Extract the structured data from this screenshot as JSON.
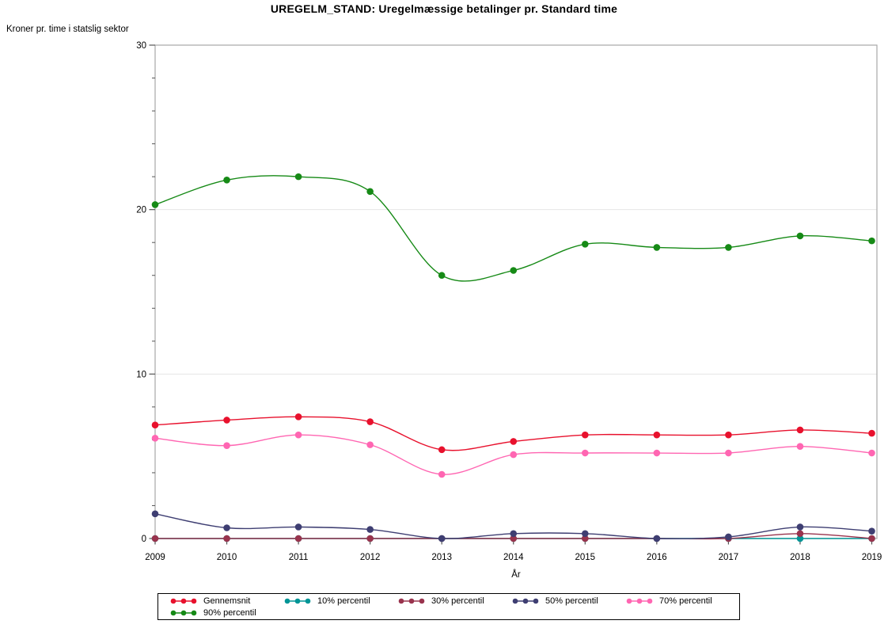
{
  "page": {
    "title": "UREGELM_STAND: Uregelmæssige betalinger pr. Standard time"
  },
  "chart_data": {
    "type": "line",
    "title": "UREGELM_STAND: Uregelmæssige betalinger pr. Standard time",
    "ylabel": "Kroner pr. time i statslig sektor",
    "xlabel": "År",
    "x": [
      2009,
      2010,
      2011,
      2012,
      2013,
      2014,
      2015,
      2016,
      2017,
      2018,
      2019
    ],
    "ylim": [
      0,
      30
    ],
    "yticks": [
      0,
      10,
      20,
      30
    ],
    "y_minor_tick_step": 2,
    "grid": true,
    "legend_position": "bottom",
    "marker": "filled-circle",
    "line_style": "smooth-spline",
    "frame_color": "#a8a8a8",
    "gridline_color": "#e6e6e6",
    "tick_color": "#555555",
    "series": [
      {
        "name": "Gennemsnit",
        "color": "#e8112d",
        "values": [
          6.9,
          7.2,
          7.4,
          7.1,
          5.4,
          5.9,
          6.3,
          6.3,
          6.3,
          6.6,
          6.4
        ]
      },
      {
        "name": "10% percentil",
        "color": "#009596",
        "values": [
          0.0,
          0.0,
          0.0,
          0.0,
          0.0,
          0.0,
          0.0,
          0.0,
          0.0,
          0.0,
          0.0
        ]
      },
      {
        "name": "30% percentil",
        "color": "#99334d",
        "values": [
          0.0,
          0.0,
          0.0,
          0.0,
          0.0,
          0.0,
          0.0,
          0.0,
          0.0,
          0.3,
          0.0
        ]
      },
      {
        "name": "50% percentil",
        "color": "#3e3e72",
        "values": [
          1.5,
          0.65,
          0.7,
          0.55,
          0.0,
          0.3,
          0.3,
          0.0,
          0.1,
          0.7,
          0.45
        ]
      },
      {
        "name": "70% percentil",
        "color": "#ff66b2",
        "values": [
          6.1,
          5.65,
          6.3,
          5.7,
          3.9,
          5.1,
          5.2,
          5.2,
          5.2,
          5.6,
          5.2
        ]
      },
      {
        "name": "90% percentil",
        "color": "#168a16",
        "values": [
          20.3,
          21.8,
          22.0,
          21.1,
          16.0,
          16.3,
          17.9,
          17.7,
          17.7,
          18.4,
          18.1
        ]
      }
    ]
  }
}
